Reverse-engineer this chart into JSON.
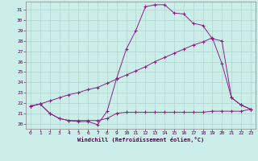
{
  "xlabel": "Windchill (Refroidissement éolien,°C)",
  "background_color": "#cceee8",
  "grid_color": "#aacccc",
  "line_color": "#882288",
  "xlim": [
    -0.5,
    23.5
  ],
  "ylim": [
    19.5,
    31.8
  ],
  "xticks": [
    0,
    1,
    2,
    3,
    4,
    5,
    6,
    7,
    8,
    9,
    10,
    11,
    12,
    13,
    14,
    15,
    16,
    17,
    18,
    19,
    20,
    21,
    22,
    23
  ],
  "yticks": [
    20,
    21,
    22,
    23,
    24,
    25,
    26,
    27,
    28,
    29,
    30,
    31
  ],
  "curve1_x": [
    0,
    1,
    2,
    3,
    4,
    5,
    6,
    7,
    8,
    9,
    10,
    11,
    12,
    13,
    14,
    15,
    16,
    17,
    18,
    19,
    20,
    21,
    22,
    23
  ],
  "curve1_y": [
    21.7,
    21.9,
    21.0,
    20.5,
    20.3,
    20.3,
    20.3,
    20.3,
    20.5,
    21.0,
    21.1,
    21.1,
    21.1,
    21.1,
    21.1,
    21.1,
    21.1,
    21.1,
    21.1,
    21.2,
    21.2,
    21.2,
    21.2,
    21.4
  ],
  "curve2_x": [
    0,
    1,
    2,
    3,
    4,
    5,
    6,
    7,
    8,
    9,
    10,
    11,
    12,
    13,
    14,
    15,
    16,
    17,
    18,
    19,
    20,
    21,
    22,
    23
  ],
  "curve2_y": [
    21.7,
    21.9,
    22.2,
    22.5,
    22.8,
    23.0,
    23.3,
    23.5,
    23.9,
    24.3,
    24.7,
    25.1,
    25.5,
    26.0,
    26.4,
    26.8,
    27.2,
    27.6,
    27.9,
    28.3,
    25.8,
    22.5,
    21.8,
    21.4
  ],
  "curve3_x": [
    0,
    1,
    2,
    3,
    4,
    5,
    6,
    7,
    8,
    9,
    10,
    11,
    12,
    13,
    14,
    15,
    16,
    17,
    18,
    19,
    20,
    21,
    22,
    23
  ],
  "curve3_y": [
    21.7,
    21.9,
    21.0,
    20.5,
    20.3,
    20.2,
    20.2,
    19.9,
    21.2,
    24.4,
    27.2,
    29.0,
    31.3,
    31.5,
    31.5,
    30.7,
    30.6,
    29.7,
    29.5,
    28.2,
    28.0,
    22.5,
    21.8,
    21.4
  ]
}
